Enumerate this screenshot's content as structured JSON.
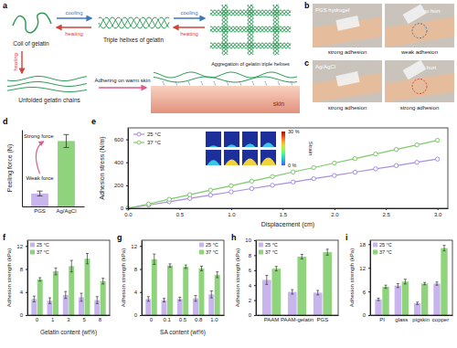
{
  "panel_labels": [
    "a",
    "b",
    "c",
    "d",
    "e",
    "f",
    "g",
    "h",
    "i"
  ],
  "diagram": {
    "coil": "Coil of gelatin",
    "triple": "Triple helixes of gelatin",
    "aggregation": "Aggregation of gelatin triple helixes",
    "unfolded": "Unfolded gelatin chains",
    "adhering": "Adhering on warm skin",
    "skin": "skin",
    "cooling_1": "cooling",
    "heating_1": "heating",
    "cooling_2": "cooling",
    "heating_2": "heating",
    "heating_3": "heating"
  },
  "photos": {
    "b": {
      "material": "PGS hydrogel",
      "left": "strong adhesion",
      "right": "weak adhesion",
      "note": "no hurt"
    },
    "c": {
      "material": "Ag/AgCl",
      "left": "strong adhesion",
      "right": "strong adhesion",
      "note": "hurt"
    }
  },
  "chart_data": [
    {
      "type": "bar",
      "y_label": "Peeling force (N)",
      "categories": [
        "PGS",
        "Ag/AgCl"
      ],
      "values": [
        0.32,
        1.62
      ],
      "errors": [
        0.06,
        0.16
      ],
      "colors": [
        "#c9b5ee",
        "#8fd47c"
      ],
      "ylim": [
        0,
        1.9
      ],
      "tick_labels": "x",
      "annotations": [
        "Weak force",
        "Strong force"
      ]
    },
    {
      "type": "line",
      "x_label": "Displacement (cm)",
      "y_label": "Adhesion stress (N/m)",
      "x": [
        0,
        0.2,
        0.4,
        0.6,
        0.8,
        1.0,
        1.2,
        1.4,
        1.6,
        1.8,
        2.0,
        2.2,
        2.4,
        2.6,
        2.8,
        3.0
      ],
      "xlim": [
        0,
        3.1
      ],
      "xticks": [
        {
          "value": 0,
          "label": "0.0"
        },
        0.5,
        {
          "value": 1,
          "label": "1.0"
        },
        1.5,
        {
          "value": 2,
          "label": "2.0"
        },
        2.5,
        {
          "value": 3,
          "label": "3.0"
        }
      ],
      "ylim": [
        0,
        700
      ],
      "yticks": [
        0,
        200,
        400,
        600
      ],
      "legend": "top-left",
      "series": [
        {
          "name": "25 °C",
          "color": "#a98fe0",
          "marker": "circle",
          "values": [
            0,
            28,
            57,
            86,
            114,
            143,
            171,
            200,
            228,
            257,
            285,
            314,
            343,
            371,
            400,
            428
          ]
        },
        {
          "name": "37 °C",
          "color": "#7fc96b",
          "marker": "circle",
          "values": [
            0,
            38,
            78,
            118,
            158,
            196,
            236,
            276,
            316,
            354,
            394,
            432,
            472,
            512,
            552,
            592
          ]
        }
      ],
      "colorbar": {
        "label": "Strain",
        "range": [
          0,
          30
        ],
        "ticks": [
          {
            "value": 0,
            "label": "0 %"
          },
          {
            "value": 30,
            "label": "30 %"
          }
        ]
      }
    },
    {
      "type": "bar",
      "x_label": "Gelatin content (wt%)",
      "y_label": "Adhesion strength (kPa)",
      "categories": [
        "0",
        "1",
        "3",
        "5",
        "8"
      ],
      "ylim": [
        0,
        13
      ],
      "yticks": [
        0,
        4,
        8,
        12
      ],
      "legend": "top-left",
      "series": [
        {
          "name": "25 °C",
          "color": "#c9b5ee",
          "values": [
            2.8,
            2.5,
            3.5,
            3.1,
            2.6
          ],
          "errors": [
            0.5,
            0.5,
            0.6,
            0.7,
            0.6
          ]
        },
        {
          "name": "37 °C",
          "color": "#8fd47c",
          "values": [
            6.2,
            7.6,
            8.5,
            9.8,
            5.9
          ],
          "errors": [
            0.3,
            0.6,
            1.0,
            0.9,
            0.5
          ]
        }
      ]
    },
    {
      "type": "bar",
      "x_label": "SA content (wt%)",
      "y_label": "Adhesion strength (kPa)",
      "categories": [
        "0",
        "0.1",
        "0.5",
        "0.8",
        "1.0"
      ],
      "ylim": [
        0,
        13
      ],
      "yticks": [
        0,
        4,
        8,
        12
      ],
      "legend": "top-right",
      "series": [
        {
          "name": "25 °C",
          "color": "#c9b5ee",
          "values": [
            2.8,
            2.6,
            2.8,
            2.9,
            3.6
          ],
          "errors": [
            0.4,
            0.3,
            0.3,
            0.5,
            0.6
          ]
        },
        {
          "name": "37 °C",
          "color": "#8fd47c",
          "values": [
            9.7,
            8.6,
            8.4,
            8.1,
            7.0
          ],
          "errors": [
            0.9,
            0.3,
            0.3,
            0.4,
            0.5
          ]
        }
      ]
    },
    {
      "type": "bar",
      "y_label": "Adhesion strength (kPa)",
      "categories": [
        "PAAM",
        "PAAM-gelatin",
        "PGS"
      ],
      "ylim": [
        0,
        10
      ],
      "yticks": [
        0,
        2,
        4,
        6,
        8,
        10
      ],
      "legend": "top-left",
      "series": [
        {
          "name": "25 °C",
          "color": "#c9b5ee",
          "values": [
            4.7,
            3.1,
            3.0
          ],
          "errors": [
            0.6,
            0.3,
            0.3
          ]
        },
        {
          "name": "37 °C",
          "color": "#8fd47c",
          "values": [
            6.2,
            7.8,
            8.4
          ],
          "errors": [
            0.3,
            0.3,
            0.4
          ]
        }
      ]
    },
    {
      "type": "bar",
      "y_label": "Adhesion strength (kPa)",
      "categories": [
        "PI",
        "glass",
        "pigskin",
        "copper"
      ],
      "ylim": [
        0,
        19
      ],
      "yticks": [
        0,
        6,
        12,
        18
      ],
      "legend": "top-left",
      "series": [
        {
          "name": "25 °C",
          "color": "#c9b5ee",
          "values": [
            4.0,
            7.5,
            3.0,
            8.0
          ],
          "errors": [
            0.3,
            0.5,
            0.3,
            0.4
          ]
        },
        {
          "name": "37 °C",
          "color": "#8fd47c",
          "values": [
            7.2,
            8.5,
            8.0,
            17.0
          ],
          "errors": [
            0.4,
            0.6,
            0.3,
            0.7
          ]
        }
      ]
    }
  ]
}
